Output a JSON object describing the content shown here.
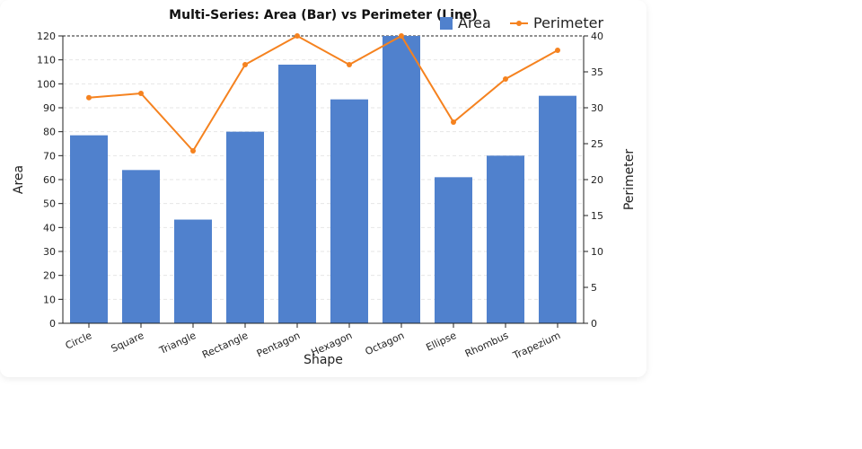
{
  "chart_data": {
    "type": "bar+line",
    "title": "Multi-Series: Area (Bar) vs Perimeter (Line)",
    "xlabel": "Shape",
    "ylabel_left": "Area",
    "ylabel_right": "Perimeter",
    "categories": [
      "Circle",
      "Square",
      "Triangle",
      "Rectangle",
      "Pentagon",
      "Hexagon",
      "Octagon",
      "Ellipse",
      "Rhombus",
      "Trapezium"
    ],
    "series": [
      {
        "name": "Area",
        "type": "bar",
        "axis": "left",
        "values": [
          78.5,
          64,
          43.3,
          80,
          108,
          93.5,
          120,
          61,
          70,
          95
        ],
        "color": "#5081cd"
      },
      {
        "name": "Perimeter",
        "type": "line",
        "axis": "right",
        "values": [
          31.4,
          32,
          24,
          36,
          40,
          36,
          40,
          28,
          34,
          38
        ],
        "color": "#f5821f"
      }
    ],
    "ylim_left": [
      0,
      120
    ],
    "yticks_left": [
      0,
      10,
      20,
      30,
      40,
      50,
      60,
      70,
      80,
      90,
      100,
      110,
      120
    ],
    "ylim_right": [
      0,
      40
    ],
    "yticks_right": [
      0,
      5,
      10,
      15,
      20,
      25,
      30,
      35,
      40
    ],
    "grid": true,
    "legend_position": "top-right"
  }
}
